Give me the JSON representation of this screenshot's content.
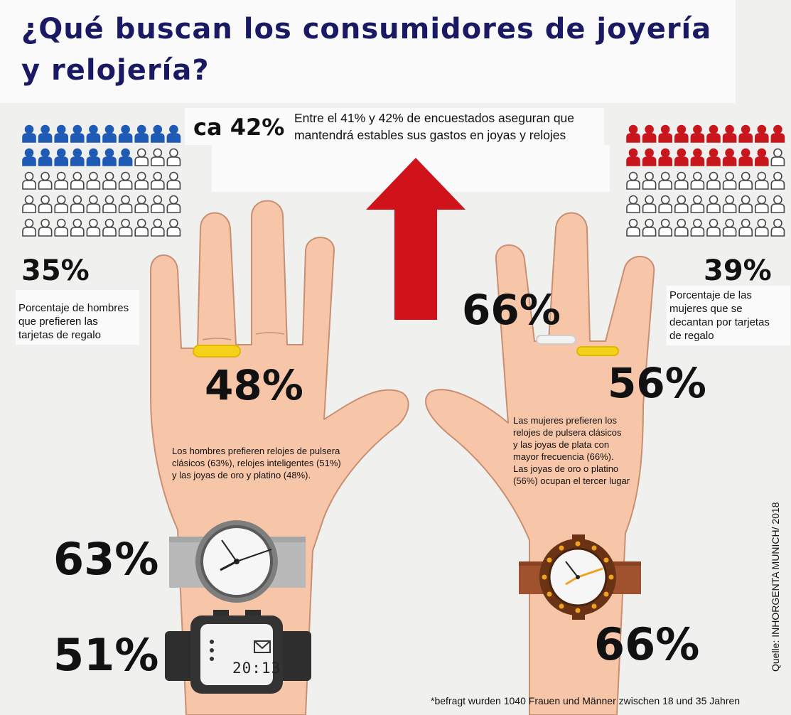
{
  "title": {
    "line1": "¿Qué buscan los consumidores de joyería",
    "line2": "y relojería?"
  },
  "top_stat": {
    "value": "ca 42%",
    "text_line1": "Entre el 41% y 42% de encuestados aseguran que",
    "text_line2": "mantendrá estables sus gastos en joyas y relojes"
  },
  "men": {
    "gift_card_pct": "35%",
    "gift_card_text": [
      "Porcentaje de hombres",
      "que prefieren las",
      "tarjetas de regalo"
    ],
    "gold_platinum_pct": "48%",
    "description": [
      "Los hombres prefieren relojes de pulsera",
      "clásicos (63%), relojes inteligentes (51%)",
      "y las joyas de oro y platino (48%)."
    ],
    "classic_watch_pct": "63%",
    "smartwatch_pct": "51%",
    "smartwatch_time": "20:13",
    "icon_grid": {
      "rows": 5,
      "cols": 10,
      "filled": 17,
      "filled_color": "#1f5bb5",
      "color": "#1f5bb5"
    }
  },
  "women": {
    "gift_card_pct": "39%",
    "gift_card_text": [
      "Porcentaje de las",
      "mujeres que se",
      "decantan por tarjetas",
      "de regalo"
    ],
    "silver_pct": "66%",
    "gold_platinum_pct": "56%",
    "description": [
      "Las mujeres prefieren los",
      "relojes de pulsera clásicos",
      "y las joyas de plata con",
      "mayor frecuencia (66%).",
      "Las joyas de oro o platino",
      "(56%) ocupan el tercer lugar"
    ],
    "classic_watch_pct": "66%",
    "icon_grid": {
      "rows": 5,
      "cols": 10,
      "filled": 19,
      "filled_color": "#c8161d",
      "color": "#c8161d"
    }
  },
  "source": "Quelle: INHORGENTA MUNICH/ 2018",
  "footnote": "*befragt wurden 1040 Frauen und Männer zwischen 18 und 35 Jahren",
  "colors": {
    "title": "#1a1a64",
    "arrow": "#d0121b",
    "skin": "#f7c6a8",
    "skin_outline": "#c98f72",
    "ring_gold": "#f5d21a",
    "ring_silver": "#e2e2e2"
  }
}
